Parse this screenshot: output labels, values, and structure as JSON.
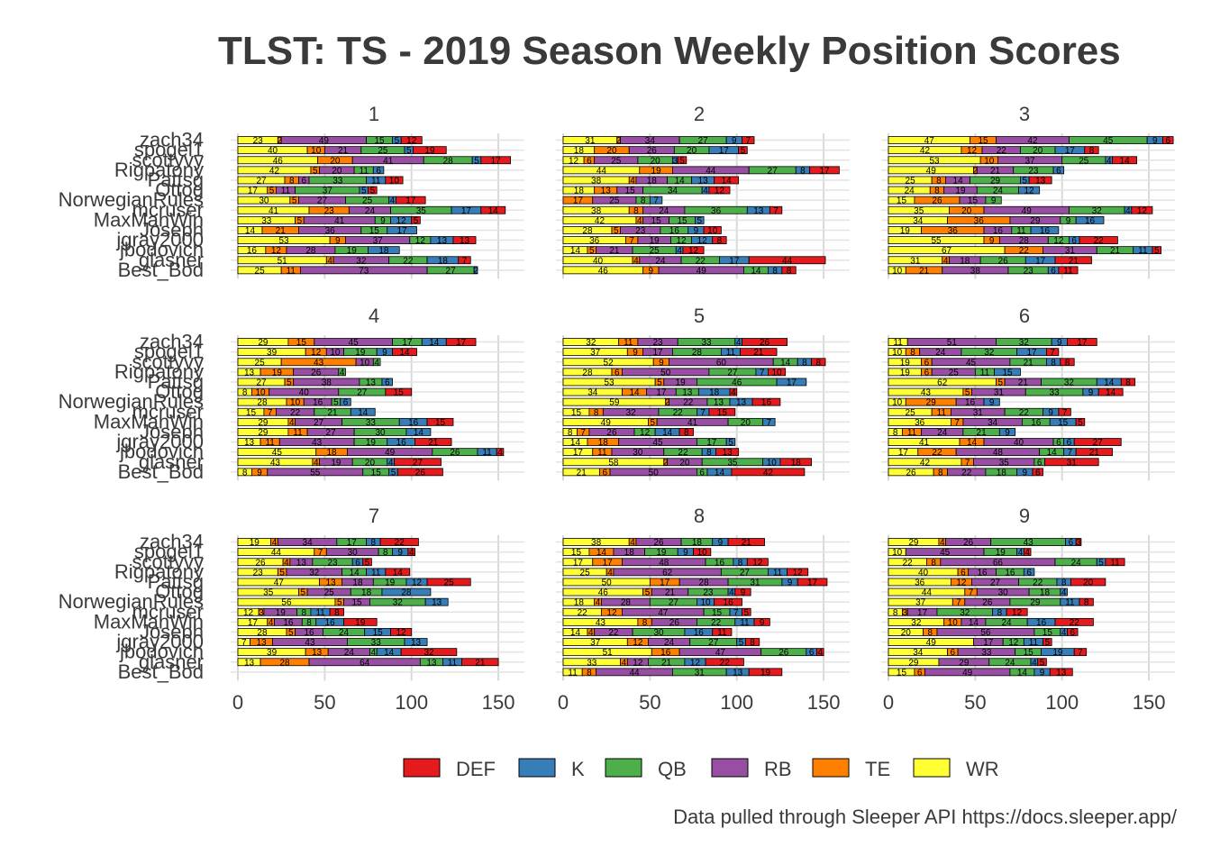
{
  "chart_data": {
    "type": "bar",
    "title": "TLST: TS - 2019 Season Weekly Position Scores",
    "caption": "Data pulled through Sleeper API https://docs.sleeper.app/",
    "xlim": [
      0,
      165
    ],
    "x_ticks": [
      0,
      50,
      100,
      150
    ],
    "grid": true,
    "legend_position": "bottom",
    "series": [
      {
        "name": "DEF",
        "color": "#e41a1c"
      },
      {
        "name": "K",
        "color": "#377eb8"
      },
      {
        "name": "QB",
        "color": "#4daf4a"
      },
      {
        "name": "RB",
        "color": "#984ea3"
      },
      {
        "name": "TE",
        "color": "#ff7f00"
      },
      {
        "name": "WR",
        "color": "#ffff33"
      }
    ],
    "stack_order": [
      "WR",
      "TE",
      "RB",
      "QB",
      "K",
      "DEF"
    ],
    "teams": [
      "zach34",
      "spogel1",
      "scottyvy",
      "Rigpatony",
      "Pattsg",
      "Ottog",
      "NorwegianRules",
      "mcruser",
      "MaxManWin",
      "Joseph",
      "jgray2000",
      "jbodovich",
      "glasner",
      "Best_Bod"
    ],
    "panels": [
      {
        "label": "1",
        "rows": [
          [
            23,
            2,
            49,
            15,
            5,
            12
          ],
          [
            40,
            10,
            21,
            25,
            5,
            19
          ],
          [
            46,
            20,
            41,
            28,
            5,
            17
          ],
          [
            42,
            5,
            20,
            11,
            6,
            0
          ],
          [
            27,
            8,
            6,
            33,
            11,
            10
          ],
          [
            17,
            5,
            11,
            37,
            5,
            5
          ],
          [
            30,
            5,
            27,
            25,
            4,
            17
          ],
          [
            41,
            23,
            24,
            35,
            17,
            14
          ],
          [
            33,
            5,
            41,
            9,
            12,
            5
          ],
          [
            14,
            21,
            36,
            15,
            17,
            0
          ],
          [
            53,
            9,
            37,
            12,
            13,
            13
          ],
          [
            16,
            12,
            28,
            19,
            18,
            0
          ],
          [
            51,
            4,
            32,
            22,
            18,
            7
          ],
          [
            25,
            11,
            73,
            27,
            2,
            0
          ]
        ]
      },
      {
        "label": "2",
        "rows": [
          [
            31,
            2,
            34,
            27,
            9,
            7
          ],
          [
            18,
            20,
            26,
            20,
            17,
            5
          ],
          [
            12,
            6,
            25,
            20,
            3,
            5
          ],
          [
            44,
            19,
            44,
            27,
            8,
            17
          ],
          [
            38,
            4,
            18,
            14,
            13,
            14
          ],
          [
            18,
            13,
            15,
            34,
            4,
            12
          ],
          [
            0,
            17,
            25,
            8,
            7,
            0
          ],
          [
            38,
            8,
            24,
            36,
            13,
            7
          ],
          [
            42,
            4,
            15,
            15,
            5,
            0
          ],
          [
            28,
            5,
            23,
            16,
            9,
            10
          ],
          [
            36,
            7,
            19,
            12,
            12,
            8
          ],
          [
            14,
            5,
            21,
            25,
            4,
            12
          ],
          [
            40,
            4,
            24,
            22,
            17,
            44
          ],
          [
            46,
            9,
            49,
            14,
            8,
            8
          ]
        ]
      },
      {
        "label": "3",
        "rows": [
          [
            47,
            15,
            42,
            45,
            9,
            6
          ],
          [
            42,
            12,
            22,
            20,
            17,
            8
          ],
          [
            53,
            10,
            37,
            25,
            4,
            14
          ],
          [
            49,
            2,
            21,
            23,
            6,
            0
          ],
          [
            25,
            8,
            14,
            29,
            5,
            13
          ],
          [
            24,
            8,
            19,
            24,
            12,
            0
          ],
          [
            15,
            26,
            15,
            9,
            0,
            0
          ],
          [
            35,
            20,
            49,
            32,
            4,
            12
          ],
          [
            34,
            36,
            29,
            9,
            16,
            0
          ],
          [
            19,
            36,
            16,
            11,
            16,
            0
          ],
          [
            55,
            9,
            28,
            12,
            6,
            22
          ],
          [
            67,
            22,
            31,
            21,
            11,
            5
          ],
          [
            31,
            4,
            18,
            26,
            17,
            21
          ],
          [
            10,
            21,
            38,
            23,
            6,
            11
          ]
        ]
      },
      {
        "label": "4",
        "rows": [
          [
            29,
            15,
            45,
            17,
            14,
            17
          ],
          [
            39,
            12,
            10,
            19,
            9,
            14
          ],
          [
            25,
            43,
            10,
            4,
            0,
            0
          ],
          [
            13,
            19,
            26,
            4,
            0,
            0
          ],
          [
            27,
            5,
            38,
            13,
            6,
            0
          ],
          [
            8,
            10,
            40,
            27,
            0,
            15
          ],
          [
            28,
            10,
            16,
            5,
            6,
            0
          ],
          [
            15,
            7,
            22,
            21,
            14,
            0
          ],
          [
            29,
            4,
            27,
            33,
            16,
            15
          ],
          [
            29,
            11,
            27,
            30,
            14,
            0
          ],
          [
            13,
            11,
            43,
            19,
            16,
            21
          ],
          [
            45,
            18,
            49,
            26,
            11,
            4
          ],
          [
            43,
            4,
            19,
            20,
            4,
            27
          ],
          [
            8,
            9,
            55,
            15,
            5,
            26
          ]
        ]
      },
      {
        "label": "5",
        "rows": [
          [
            32,
            11,
            23,
            33,
            4,
            26
          ],
          [
            37,
            9,
            17,
            28,
            11,
            21
          ],
          [
            52,
            9,
            60,
            14,
            8,
            8
          ],
          [
            28,
            6,
            50,
            27,
            7,
            10
          ],
          [
            53,
            5,
            19,
            46,
            17,
            0
          ],
          [
            34,
            14,
            17,
            13,
            18,
            4
          ],
          [
            59,
            2,
            22,
            13,
            13,
            16
          ],
          [
            15,
            8,
            32,
            22,
            7,
            15
          ],
          [
            49,
            5,
            41,
            20,
            7,
            0
          ],
          [
            8,
            7,
            26,
            12,
            14,
            8
          ],
          [
            14,
            18,
            45,
            17,
            5,
            0
          ],
          [
            17,
            11,
            30,
            22,
            8,
            13
          ],
          [
            58,
            2,
            20,
            35,
            10,
            18
          ],
          [
            21,
            6,
            50,
            6,
            14,
            42
          ]
        ]
      },
      {
        "label": "6",
        "rows": [
          [
            11,
            0,
            51,
            32,
            9,
            17
          ],
          [
            10,
            8,
            24,
            32,
            17,
            7
          ],
          [
            19,
            6,
            45,
            21,
            8,
            8
          ],
          [
            19,
            6,
            25,
            11,
            15,
            0
          ],
          [
            62,
            5,
            21,
            32,
            14,
            8
          ],
          [
            43,
            5,
            31,
            33,
            9,
            14
          ],
          [
            10,
            29,
            16,
            0,
            9,
            0
          ],
          [
            25,
            11,
            31,
            22,
            9,
            7
          ],
          [
            36,
            7,
            34,
            16,
            15,
            5
          ],
          [
            8,
            11,
            24,
            21,
            9,
            0
          ],
          [
            41,
            14,
            40,
            6,
            6,
            27
          ],
          [
            17,
            22,
            48,
            14,
            7,
            21
          ],
          [
            42,
            7,
            35,
            6,
            0,
            31
          ],
          [
            26,
            8,
            22,
            18,
            9,
            6
          ]
        ]
      },
      {
        "label": "7",
        "rows": [
          [
            19,
            4,
            34,
            17,
            8,
            22
          ],
          [
            44,
            7,
            30,
            8,
            9,
            4
          ],
          [
            26,
            4,
            13,
            23,
            6,
            5
          ],
          [
            23,
            5,
            32,
            14,
            11,
            14
          ],
          [
            47,
            13,
            18,
            19,
            12,
            25
          ],
          [
            35,
            5,
            25,
            18,
            28,
            0
          ],
          [
            56,
            5,
            15,
            32,
            13,
            0
          ],
          [
            12,
            3,
            19,
            8,
            11,
            8
          ],
          [
            17,
            4,
            16,
            8,
            16,
            19
          ],
          [
            28,
            5,
            16,
            24,
            15,
            12
          ],
          [
            7,
            13,
            43,
            33,
            13,
            0
          ],
          [
            39,
            13,
            24,
            4,
            14,
            32
          ],
          [
            13,
            28,
            64,
            13,
            11,
            21
          ],
          [
            0,
            0,
            0,
            0,
            0,
            0
          ]
        ]
      },
      {
        "label": "8",
        "rows": [
          [
            38,
            4,
            26,
            18,
            9,
            21
          ],
          [
            15,
            14,
            18,
            19,
            9,
            10
          ],
          [
            17,
            17,
            48,
            16,
            8,
            12
          ],
          [
            25,
            4,
            62,
            27,
            11,
            12
          ],
          [
            50,
            17,
            28,
            31,
            9,
            17
          ],
          [
            46,
            5,
            21,
            23,
            4,
            9
          ],
          [
            18,
            4,
            28,
            27,
            10,
            16
          ],
          [
            22,
            12,
            47,
            15,
            7,
            5
          ],
          [
            43,
            8,
            26,
            22,
            11,
            9
          ],
          [
            14,
            4,
            22,
            30,
            16,
            11
          ],
          [
            37,
            12,
            24,
            27,
            5,
            8
          ],
          [
            51,
            16,
            47,
            26,
            6,
            4
          ],
          [
            33,
            4,
            12,
            21,
            12,
            22
          ],
          [
            11,
            8,
            44,
            31,
            13,
            19
          ]
        ]
      },
      {
        "label": "9",
        "rows": [
          [
            29,
            4,
            26,
            43,
            6,
            3
          ],
          [
            10,
            0,
            45,
            19,
            4,
            4
          ],
          [
            22,
            8,
            66,
            24,
            5,
            11
          ],
          [
            40,
            6,
            16,
            16,
            6,
            0
          ],
          [
            36,
            12,
            27,
            22,
            8,
            20
          ],
          [
            44,
            7,
            30,
            18,
            4,
            0
          ],
          [
            37,
            7,
            26,
            29,
            11,
            8
          ],
          [
            8,
            3,
            17,
            32,
            8,
            12
          ],
          [
            32,
            10,
            14,
            24,
            16,
            22
          ],
          [
            20,
            8,
            56,
            15,
            4,
            6
          ],
          [
            49,
            0,
            17,
            12,
            11,
            5
          ],
          [
            34,
            6,
            33,
            15,
            19,
            7
          ],
          [
            29,
            0,
            29,
            24,
            4,
            5
          ],
          [
            15,
            6,
            49,
            14,
            9,
            13
          ]
        ]
      }
    ]
  }
}
